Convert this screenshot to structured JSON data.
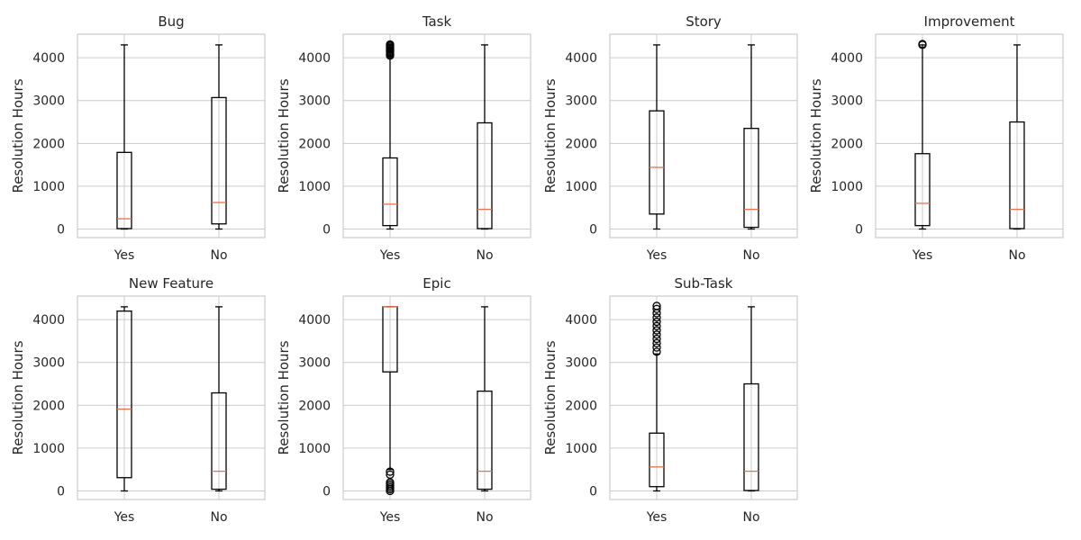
{
  "figure": {
    "colors": {
      "grid": "#cccccc",
      "frame": "#cccccc",
      "box": "#000000",
      "median": "#e8734a",
      "text": "#262626"
    }
  },
  "chart_data": [
    {
      "type": "box",
      "title": "Bug",
      "ylabel": "Resolution Hours",
      "ylim": [
        -200,
        4550
      ],
      "yticks": [
        0,
        1000,
        2000,
        3000,
        4000
      ],
      "categories": [
        "Yes",
        "No"
      ],
      "boxes": [
        {
          "category": "Yes",
          "whisker_low": 0,
          "q1": 10,
          "median": 240,
          "q3": 1790,
          "whisker_high": 4300,
          "outliers": []
        },
        {
          "category": "No",
          "whisker_low": 0,
          "q1": 120,
          "median": 620,
          "q3": 3070,
          "whisker_high": 4300,
          "outliers": []
        }
      ]
    },
    {
      "type": "box",
      "title": "Task",
      "ylabel": "Resolution Hours",
      "ylim": [
        -200,
        4550
      ],
      "yticks": [
        0,
        1000,
        2000,
        3000,
        4000
      ],
      "categories": [
        "Yes",
        "No"
      ],
      "boxes": [
        {
          "category": "Yes",
          "whisker_low": 0,
          "q1": 80,
          "median": 580,
          "q3": 1660,
          "whisker_high": 4300,
          "outliers": [
            4050,
            4080,
            4110,
            4140,
            4170,
            4200,
            4230,
            4260,
            4290,
            4310
          ]
        },
        {
          "category": "No",
          "whisker_low": 0,
          "q1": 10,
          "median": 460,
          "q3": 2480,
          "whisker_high": 4300,
          "outliers": []
        }
      ]
    },
    {
      "type": "box",
      "title": "Story",
      "ylabel": "Resolution Hours",
      "ylim": [
        -200,
        4550
      ],
      "yticks": [
        0,
        1000,
        2000,
        3000,
        4000
      ],
      "categories": [
        "Yes",
        "No"
      ],
      "boxes": [
        {
          "category": "Yes",
          "whisker_low": 0,
          "q1": 350,
          "median": 1440,
          "q3": 2760,
          "whisker_high": 4300,
          "outliers": []
        },
        {
          "category": "No",
          "whisker_low": 0,
          "q1": 40,
          "median": 460,
          "q3": 2350,
          "whisker_high": 4300,
          "outliers": []
        }
      ]
    },
    {
      "type": "box",
      "title": "Improvement",
      "ylabel": "Resolution Hours",
      "ylim": [
        -200,
        4550
      ],
      "yticks": [
        0,
        1000,
        2000,
        3000,
        4000
      ],
      "categories": [
        "Yes",
        "No"
      ],
      "boxes": [
        {
          "category": "Yes",
          "whisker_low": 0,
          "q1": 80,
          "median": 600,
          "q3": 1760,
          "whisker_high": 4300,
          "outliers": [
            4300,
            4320
          ]
        },
        {
          "category": "No",
          "whisker_low": 0,
          "q1": 10,
          "median": 460,
          "q3": 2500,
          "whisker_high": 4300,
          "outliers": []
        }
      ]
    },
    {
      "type": "box",
      "title": "New Feature",
      "ylabel": "Resolution Hours",
      "ylim": [
        -200,
        4550
      ],
      "yticks": [
        0,
        1000,
        2000,
        3000,
        4000
      ],
      "categories": [
        "Yes",
        "No"
      ],
      "boxes": [
        {
          "category": "Yes",
          "whisker_low": 0,
          "q1": 310,
          "median": 1910,
          "q3": 4200,
          "whisker_high": 4300,
          "outliers": []
        },
        {
          "category": "No",
          "whisker_low": 0,
          "q1": 40,
          "median": 460,
          "q3": 2290,
          "whisker_high": 4300,
          "outliers": []
        }
      ]
    },
    {
      "type": "box",
      "title": "Epic",
      "ylabel": "Resolution Hours",
      "ylim": [
        -200,
        4550
      ],
      "yticks": [
        0,
        1000,
        2000,
        3000,
        4000
      ],
      "categories": [
        "Yes",
        "No"
      ],
      "boxes": [
        {
          "category": "Yes",
          "whisker_low": 500,
          "q1": 2780,
          "median": 4300,
          "q3": 4300,
          "whisker_high": 4300,
          "outliers": [
            0,
            40,
            80,
            120,
            160,
            200,
            380,
            450
          ]
        },
        {
          "category": "No",
          "whisker_low": 0,
          "q1": 40,
          "median": 460,
          "q3": 2330,
          "whisker_high": 4300,
          "outliers": []
        }
      ]
    },
    {
      "type": "box",
      "title": "Sub-Task",
      "ylabel": "Resolution Hours",
      "ylim": [
        -200,
        4550
      ],
      "yticks": [
        0,
        1000,
        2000,
        3000,
        4000
      ],
      "categories": [
        "Yes",
        "No"
      ],
      "boxes": [
        {
          "category": "Yes",
          "whisker_low": 0,
          "q1": 100,
          "median": 560,
          "q3": 1350,
          "whisker_high": 3200,
          "outliers": [
            3250,
            3350,
            3450,
            3550,
            3650,
            3750,
            3850,
            3950,
            4050,
            4150,
            4250,
            4320
          ]
        },
        {
          "category": "No",
          "whisker_low": 0,
          "q1": 10,
          "median": 460,
          "q3": 2500,
          "whisker_high": 4300,
          "outliers": []
        }
      ]
    }
  ]
}
